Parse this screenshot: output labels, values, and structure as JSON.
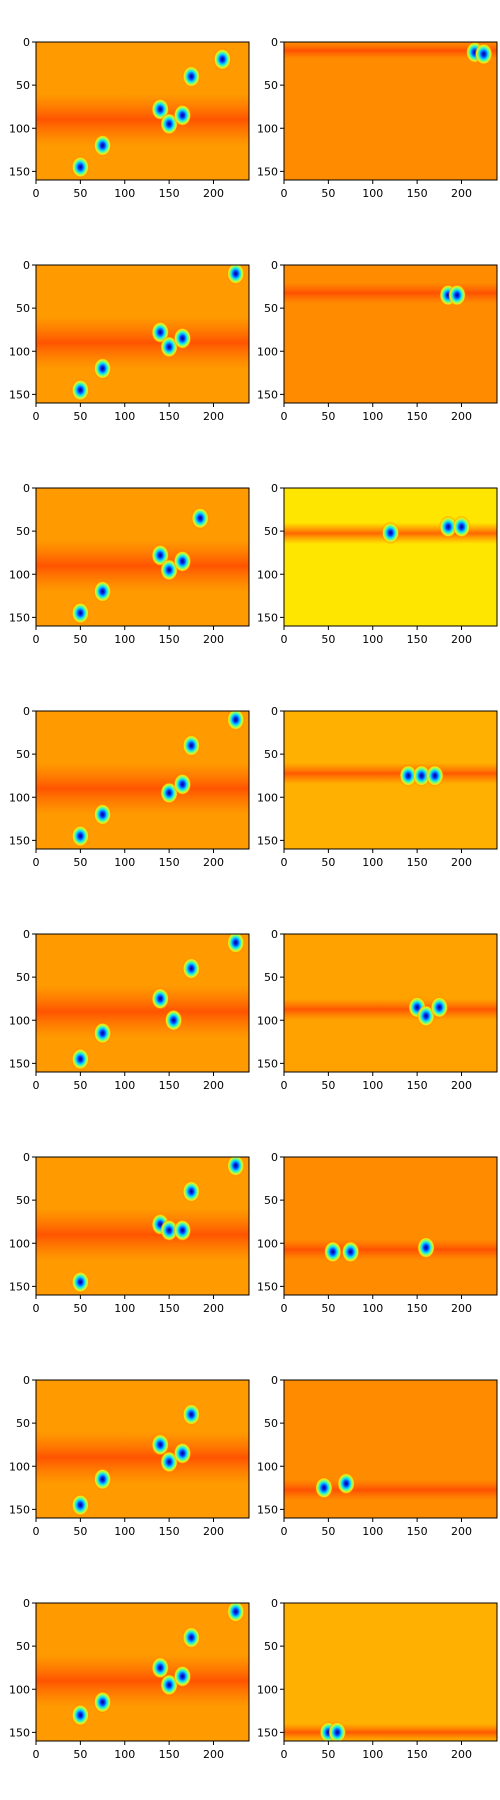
{
  "figure": {
    "rows": 8,
    "cols": 2,
    "type": "heatmap",
    "colormap": "jet",
    "shared_axes": {
      "x_ticks": [
        "0",
        "50",
        "100",
        "150",
        "200"
      ],
      "x_tick_values": [
        0,
        50,
        100,
        150,
        200
      ],
      "y_ticks": [
        "0",
        "50",
        "100",
        "150"
      ],
      "y_tick_values": [
        0,
        50,
        100,
        150
      ],
      "xlim": [
        0,
        240
      ],
      "ylim": [
        160,
        0
      ]
    }
  },
  "chart_data": [
    {
      "type": "heatmap",
      "panel": "r1c1",
      "xlim": [
        0,
        240
      ],
      "ylim": [
        160,
        0
      ],
      "x_ticks": [
        0,
        50,
        100,
        150,
        200
      ],
      "y_ticks": [
        0,
        50,
        100,
        150
      ],
      "background": "#ff9a00",
      "band_y": [
        60,
        120
      ],
      "hotspots": [
        [
          50,
          145
        ],
        [
          75,
          120
        ],
        [
          140,
          78
        ],
        [
          150,
          95
        ],
        [
          165,
          85
        ],
        [
          175,
          40
        ],
        [
          210,
          20
        ]
      ]
    },
    {
      "type": "heatmap",
      "panel": "r1c2",
      "xlim": [
        0,
        240
      ],
      "ylim": [
        160,
        0
      ],
      "x_ticks": [
        0,
        50,
        100,
        150,
        200
      ],
      "y_ticks": [
        0,
        50,
        100,
        150
      ],
      "background": "#ff8c00",
      "band_y": [
        0,
        20
      ],
      "hotspots": [
        [
          215,
          12
        ],
        [
          225,
          14
        ]
      ]
    },
    {
      "type": "heatmap",
      "panel": "r2c1",
      "xlim": [
        0,
        240
      ],
      "ylim": [
        160,
        0
      ],
      "x_ticks": [
        0,
        50,
        100,
        150,
        200
      ],
      "y_ticks": [
        0,
        50,
        100,
        150
      ],
      "background": "#ff9a00",
      "band_y": [
        60,
        120
      ],
      "hotspots": [
        [
          50,
          145
        ],
        [
          75,
          120
        ],
        [
          140,
          78
        ],
        [
          150,
          95
        ],
        [
          165,
          85
        ],
        [
          225,
          10
        ]
      ]
    },
    {
      "type": "heatmap",
      "panel": "r2c2",
      "xlim": [
        0,
        240
      ],
      "ylim": [
        160,
        0
      ],
      "x_ticks": [
        0,
        50,
        100,
        150,
        200
      ],
      "y_ticks": [
        0,
        50,
        100,
        150
      ],
      "background": "#ff8c00",
      "band_y": [
        20,
        45
      ],
      "hotspots": [
        [
          185,
          35
        ],
        [
          195,
          35
        ]
      ]
    },
    {
      "type": "heatmap",
      "panel": "r3c1",
      "xlim": [
        0,
        240
      ],
      "ylim": [
        160,
        0
      ],
      "x_ticks": [
        0,
        50,
        100,
        150,
        200
      ],
      "y_ticks": [
        0,
        50,
        100,
        150
      ],
      "background": "#ff9a00",
      "band_y": [
        60,
        120
      ],
      "hotspots": [
        [
          50,
          145
        ],
        [
          75,
          120
        ],
        [
          140,
          78
        ],
        [
          150,
          95
        ],
        [
          165,
          85
        ],
        [
          185,
          35
        ]
      ]
    },
    {
      "type": "heatmap",
      "panel": "r3c2",
      "xlim": [
        0,
        240
      ],
      "ylim": [
        160,
        0
      ],
      "x_ticks": [
        0,
        50,
        100,
        150,
        200
      ],
      "y_ticks": [
        0,
        50,
        100,
        150
      ],
      "background": "#ffe600",
      "band_y": [
        40,
        65
      ],
      "hotspots": [
        [
          120,
          52
        ],
        [
          185,
          45
        ],
        [
          200,
          45
        ]
      ]
    },
    {
      "type": "heatmap",
      "panel": "r4c1",
      "xlim": [
        0,
        240
      ],
      "ylim": [
        160,
        0
      ],
      "x_ticks": [
        0,
        50,
        100,
        150,
        200
      ],
      "y_ticks": [
        0,
        50,
        100,
        150
      ],
      "background": "#ff9a00",
      "band_y": [
        60,
        120
      ],
      "hotspots": [
        [
          50,
          145
        ],
        [
          75,
          120
        ],
        [
          150,
          95
        ],
        [
          165,
          85
        ],
        [
          175,
          40
        ],
        [
          225,
          10
        ]
      ]
    },
    {
      "type": "heatmap",
      "panel": "r4c2",
      "xlim": [
        0,
        240
      ],
      "ylim": [
        160,
        0
      ],
      "x_ticks": [
        0,
        50,
        100,
        150,
        200
      ],
      "y_ticks": [
        0,
        50,
        100,
        150
      ],
      "background": "#ffb000",
      "band_y": [
        60,
        85
      ],
      "hotspots": [
        [
          140,
          75
        ],
        [
          155,
          75
        ],
        [
          170,
          75
        ]
      ]
    },
    {
      "type": "heatmap",
      "panel": "r5c1",
      "xlim": [
        0,
        240
      ],
      "ylim": [
        160,
        0
      ],
      "x_ticks": [
        0,
        50,
        100,
        150,
        200
      ],
      "y_ticks": [
        0,
        50,
        100,
        150
      ],
      "background": "#ff9a00",
      "band_y": [
        60,
        120
      ],
      "hotspots": [
        [
          50,
          145
        ],
        [
          75,
          115
        ],
        [
          140,
          75
        ],
        [
          155,
          100
        ],
        [
          175,
          40
        ],
        [
          225,
          10
        ]
      ]
    },
    {
      "type": "heatmap",
      "panel": "r5c2",
      "xlim": [
        0,
        240
      ],
      "ylim": [
        160,
        0
      ],
      "x_ticks": [
        0,
        50,
        100,
        150,
        200
      ],
      "y_ticks": [
        0,
        50,
        100,
        150
      ],
      "background": "#ffa200",
      "band_y": [
        75,
        100
      ],
      "hotspots": [
        [
          150,
          85
        ],
        [
          160,
          95
        ],
        [
          175,
          85
        ]
      ]
    },
    {
      "type": "heatmap",
      "panel": "r6c1",
      "xlim": [
        0,
        240
      ],
      "ylim": [
        160,
        0
      ],
      "x_ticks": [
        0,
        50,
        100,
        150,
        200
      ],
      "y_ticks": [
        0,
        50,
        100,
        150
      ],
      "background": "#ff9a00",
      "band_y": [
        60,
        120
      ],
      "hotspots": [
        [
          50,
          145
        ],
        [
          140,
          78
        ],
        [
          150,
          85
        ],
        [
          165,
          85
        ],
        [
          175,
          40
        ],
        [
          225,
          10
        ]
      ]
    },
    {
      "type": "heatmap",
      "panel": "r6c2",
      "xlim": [
        0,
        240
      ],
      "ylim": [
        160,
        0
      ],
      "x_ticks": [
        0,
        50,
        100,
        150,
        200
      ],
      "y_ticks": [
        0,
        50,
        100,
        150
      ],
      "background": "#ff8c00",
      "band_y": [
        95,
        120
      ],
      "hotspots": [
        [
          55,
          110
        ],
        [
          75,
          110
        ],
        [
          160,
          105
        ]
      ]
    },
    {
      "type": "heatmap",
      "panel": "r7c1",
      "xlim": [
        0,
        240
      ],
      "ylim": [
        160,
        0
      ],
      "x_ticks": [
        0,
        50,
        100,
        150,
        200
      ],
      "y_ticks": [
        0,
        50,
        100,
        150
      ],
      "background": "#ff9a00",
      "band_y": [
        60,
        120
      ],
      "hotspots": [
        [
          50,
          145
        ],
        [
          75,
          115
        ],
        [
          140,
          75
        ],
        [
          150,
          95
        ],
        [
          165,
          85
        ],
        [
          175,
          40
        ]
      ]
    },
    {
      "type": "heatmap",
      "panel": "r7c2",
      "xlim": [
        0,
        240
      ],
      "ylim": [
        160,
        0
      ],
      "x_ticks": [
        0,
        50,
        100,
        150,
        200
      ],
      "y_ticks": [
        0,
        50,
        100,
        150
      ],
      "background": "#ff8c00",
      "band_y": [
        115,
        140
      ],
      "hotspots": [
        [
          45,
          125
        ],
        [
          70,
          120
        ]
      ]
    },
    {
      "type": "heatmap",
      "panel": "r8c1",
      "xlim": [
        0,
        240
      ],
      "ylim": [
        160,
        0
      ],
      "x_ticks": [
        0,
        50,
        100,
        150,
        200
      ],
      "y_ticks": [
        0,
        50,
        100,
        150
      ],
      "background": "#ff9a00",
      "band_y": [
        60,
        120
      ],
      "hotspots": [
        [
          50,
          130
        ],
        [
          75,
          115
        ],
        [
          140,
          75
        ],
        [
          150,
          95
        ],
        [
          165,
          85
        ],
        [
          175,
          40
        ],
        [
          225,
          10
        ]
      ]
    },
    {
      "type": "heatmap",
      "panel": "r8c2",
      "xlim": [
        0,
        240
      ],
      "ylim": [
        160,
        0
      ],
      "x_ticks": [
        0,
        50,
        100,
        150,
        200
      ],
      "y_ticks": [
        0,
        50,
        100,
        150
      ],
      "background": "#ffb000",
      "band_y": [
        140,
        160
      ],
      "hotspots": [
        [
          50,
          150
        ],
        [
          60,
          150
        ]
      ]
    }
  ]
}
